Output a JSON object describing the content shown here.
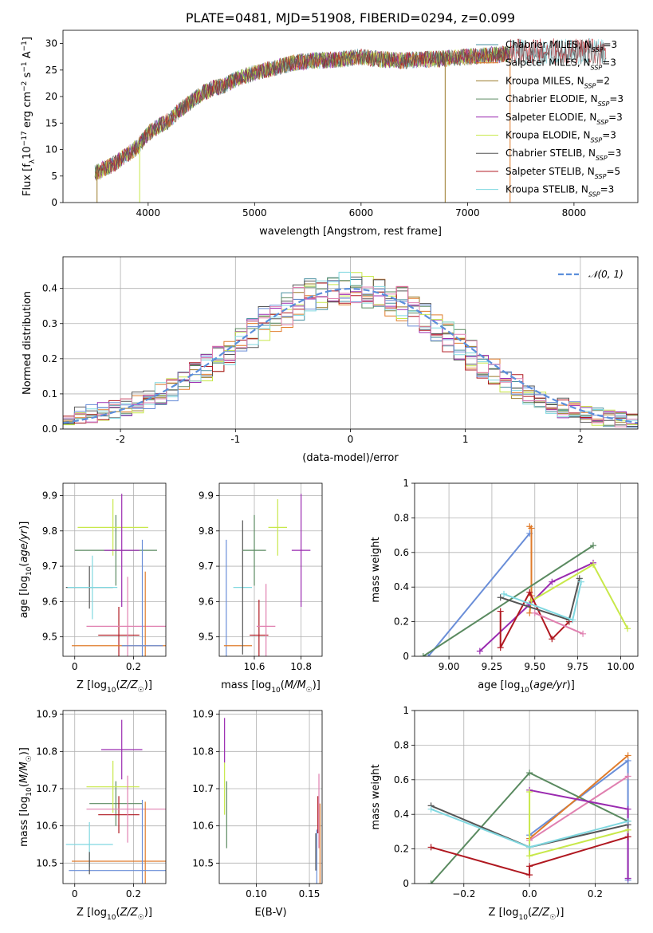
{
  "colors": {
    "Chabrier MILES": "#4a90a0",
    "Salpeter MILES": "#e07b2a",
    "Kroupa MILES": "#9a7a2a",
    "Chabrier ELODIE": "#5a8a60",
    "Salpeter ELODIE": "#9a2ab0",
    "Kroupa ELODIE": "#c8e84a",
    "Chabrier STELIB": "#555555",
    "Salpeter STELIB": "#b01820",
    "Kroupa STELIB": "#80d8e0",
    "extra_blue": "#6a8ed8",
    "extra_pink": "#e080b0",
    "normal_curve": "#5b8fdb",
    "grid": "#b0b0b0"
  },
  "chart_data": [
    {
      "type": "line",
      "title": "PLATE=0481, MJD=51908, FIBERID=0294, z=0.099",
      "xlabel": "wavelength [Angstrom, rest frame]",
      "ylabel": "Flux [fλ10⁻¹⁷ erg cm⁻² s⁻¹ A⁻¹]",
      "xlim": [
        3200,
        8600
      ],
      "ylim": [
        0,
        32.5
      ],
      "xticks": [
        4000,
        5000,
        6000,
        7000,
        8000
      ],
      "yticks": [
        0,
        5,
        10,
        15,
        20,
        25,
        30
      ],
      "grid": false,
      "legend_position": "right",
      "legend": [
        {
          "pre": "Chabrier MILES, N",
          "sub": "SSP",
          "post": "=3",
          "color_key": "Chabrier MILES"
        },
        {
          "pre": "Salpeter MILES, N",
          "sub": "SSP",
          "post": "=3",
          "color_key": "Salpeter MILES"
        },
        {
          "pre": "Kroupa MILES, N",
          "sub": "SSP",
          "post": "=2",
          "color_key": "Kroupa MILES"
        },
        {
          "pre": "Chabrier ELODIE, N",
          "sub": "SSP",
          "post": "=3",
          "color_key": "Chabrier ELODIE"
        },
        {
          "pre": "Salpeter ELODIE, N",
          "sub": "SSP",
          "post": "=3",
          "color_key": "Salpeter ELODIE"
        },
        {
          "pre": "Kroupa ELODIE, N",
          "sub": "SSP",
          "post": "=3",
          "color_key": "Kroupa ELODIE"
        },
        {
          "pre": "Chabrier STELIB, N",
          "sub": "SSP",
          "post": "=3",
          "color_key": "Chabrier STELIB"
        },
        {
          "pre": "Salpeter STELIB, N",
          "sub": "SSP",
          "post": "=5",
          "color_key": "Salpeter STELIB"
        },
        {
          "pre": "Kroupa STELIB, N",
          "sub": "SSP",
          "post": "=3",
          "color_key": "Kroupa STELIB"
        }
      ],
      "spectrum_envelope": {
        "x": [
          3500,
          3600,
          3700,
          3800,
          3900,
          4000,
          4100,
          4200,
          4300,
          4400,
          4500,
          4600,
          4700,
          4800,
          4900,
          5000,
          5200,
          5400,
          5600,
          5800,
          6000,
          6200,
          6400,
          6600,
          6800,
          7000,
          7200,
          7400
        ],
        "y": [
          5.5,
          6.5,
          7.5,
          9.0,
          10.5,
          13.0,
          14.5,
          15.5,
          17.5,
          19.0,
          20.5,
          21.5,
          22.0,
          23.0,
          23.8,
          24.5,
          25.5,
          26.5,
          26.8,
          27.0,
          27.5,
          27.0,
          26.8,
          27.0,
          27.2,
          27.5,
          27.8,
          28.0
        ]
      },
      "spike_drops_x": [
        3520,
        3920,
        6790,
        7400
      ],
      "red_tail": {
        "x": [
          7400,
          8300
        ],
        "y_mean": 28.5
      }
    },
    {
      "type": "histogram",
      "xlabel": "(data-model)/error",
      "ylabel": "Normed distribution",
      "xlim": [
        -2.5,
        2.5
      ],
      "ylim": [
        0,
        0.49
      ],
      "xticks": [
        -2,
        -1,
        0,
        1,
        2
      ],
      "yticks": [
        0.0,
        0.1,
        0.2,
        0.3,
        0.4
      ],
      "grid": true,
      "legend_position": "top-right",
      "curve_label": "𝒩(0, 1)",
      "bin_edges": [
        -2.5,
        -2.4,
        -2.3,
        -2.2,
        -2.1,
        -2.0,
        -1.9,
        -1.8,
        -1.7,
        -1.6,
        -1.5,
        -1.4,
        -1.3,
        -1.2,
        -1.1,
        -1.0,
        -0.9,
        -0.8,
        -0.7,
        -0.6,
        -0.5,
        -0.4,
        -0.3,
        -0.2,
        -0.1,
        0.0,
        0.1,
        0.2,
        0.3,
        0.4,
        0.5,
        0.6,
        0.7,
        0.8,
        0.9,
        1.0,
        1.1,
        1.2,
        1.3,
        1.4,
        1.5,
        1.6,
        1.7,
        1.8,
        1.9,
        2.0,
        2.1,
        2.2,
        2.3,
        2.4,
        2.5
      ],
      "series_base": [
        0.035,
        0.04,
        0.045,
        0.05,
        0.055,
        0.06,
        0.075,
        0.09,
        0.1,
        0.115,
        0.135,
        0.155,
        0.175,
        0.195,
        0.22,
        0.25,
        0.275,
        0.3,
        0.32,
        0.34,
        0.36,
        0.375,
        0.385,
        0.39,
        0.395,
        0.4,
        0.395,
        0.385,
        0.375,
        0.36,
        0.34,
        0.32,
        0.295,
        0.265,
        0.24,
        0.21,
        0.185,
        0.16,
        0.14,
        0.12,
        0.1,
        0.085,
        0.07,
        0.06,
        0.05,
        0.04,
        0.035,
        0.03,
        0.025,
        0.02
      ]
    },
    {
      "type": "scatter",
      "subtype": "errorbar",
      "xlabel": "Z [log10(Z/Z☉)]",
      "ylabel": "age  [log10(age/yr)]",
      "xlim": [
        -0.04,
        0.31
      ],
      "ylim": [
        9.445,
        9.935
      ],
      "xticks": [
        0.0,
        0.2
      ],
      "yticks": [
        9.5,
        9.6,
        9.7,
        9.8,
        9.9
      ],
      "grid": true,
      "points": [
        {
          "x": 0.05,
          "y": 9.64,
          "xerr": 0.08,
          "yerr": 0.06,
          "c": "Chabrier STELIB"
        },
        {
          "x": 0.06,
          "y": 9.64,
          "xerr": 0.085,
          "yerr": 0.09,
          "c": "Kroupa STELIB"
        },
        {
          "x": 0.14,
          "y": 9.745,
          "xerr": 0.14,
          "yerr": 0.1,
          "c": "Chabrier ELODIE"
        },
        {
          "x": 0.13,
          "y": 9.81,
          "xerr": 0.12,
          "yerr": 0.08,
          "c": "Kroupa ELODIE"
        },
        {
          "x": 0.16,
          "y": 9.745,
          "xerr": 0.06,
          "yerr": 0.16,
          "c": "Salpeter ELODIE"
        },
        {
          "x": 0.15,
          "y": 9.505,
          "xerr": 0.07,
          "yerr": 0.08,
          "c": "Salpeter STELIB"
        },
        {
          "x": 0.18,
          "y": 9.53,
          "xerr": 0.14,
          "yerr": 0.14,
          "c": "extra_pink"
        },
        {
          "x": 0.24,
          "y": 9.475,
          "xerr": 0.25,
          "yerr": 0.21,
          "c": "Salpeter MILES"
        },
        {
          "x": 0.23,
          "y": 9.475,
          "xerr": 0.07,
          "yerr": 0.3,
          "c": "extra_blue"
        }
      ]
    },
    {
      "type": "scatter",
      "subtype": "errorbar",
      "xlabel": "mass [log10(M/M☉)]",
      "ylabel": "",
      "xlim": [
        10.45,
        10.89
      ],
      "ylim": [
        9.445,
        9.935
      ],
      "xticks": [
        10.6,
        10.8
      ],
      "yticks": [
        9.5,
        9.6,
        9.7,
        9.8,
        9.9
      ],
      "grid": true,
      "points": [
        {
          "x": 10.48,
          "y": 9.475,
          "xerr": 0.0,
          "yerr": 0.3,
          "c": "extra_blue"
        },
        {
          "x": 10.53,
          "y": 9.475,
          "xerr": 0.06,
          "yerr": 0.0,
          "c": "Salpeter MILES"
        },
        {
          "x": 10.55,
          "y": 9.64,
          "xerr": 0.04,
          "yerr": 0.0,
          "c": "Kroupa STELIB"
        },
        {
          "x": 10.55,
          "y": 9.64,
          "xerr": 0.0,
          "yerr": 0.19,
          "c": "Chabrier STELIB"
        },
        {
          "x": 10.6,
          "y": 9.745,
          "xerr": 0.05,
          "yerr": 0.1,
          "c": "Chabrier ELODIE"
        },
        {
          "x": 10.62,
          "y": 9.505,
          "xerr": 0.04,
          "yerr": 0.1,
          "c": "Salpeter STELIB"
        },
        {
          "x": 10.65,
          "y": 9.53,
          "xerr": 0.04,
          "yerr": 0.12,
          "c": "extra_pink"
        },
        {
          "x": 10.7,
          "y": 9.81,
          "xerr": 0.04,
          "yerr": 0.08,
          "c": "Kroupa ELODIE"
        },
        {
          "x": 10.8,
          "y": 9.745,
          "xerr": 0.04,
          "yerr": 0.16,
          "c": "Salpeter ELODIE"
        }
      ]
    },
    {
      "type": "line",
      "xlabel": "age  [log10(age/yr)]",
      "ylabel": "mass weight",
      "xlim": [
        8.8,
        10.1
      ],
      "ylim": [
        0,
        1
      ],
      "xticks": [
        9.0,
        9.25,
        9.5,
        9.75,
        10.0
      ],
      "xticklabels": [
        "9.00",
        "9.25",
        "9.50",
        "9.75",
        "10.00"
      ],
      "yticks": [
        0.0,
        0.2,
        0.4,
        0.6,
        0.8,
        1.0
      ],
      "grid": true,
      "series": [
        {
          "c": "extra_blue",
          "x": [
            8.88,
            9.47
          ],
          "y": [
            0.0,
            0.71
          ]
        },
        {
          "c": "Salpeter MILES",
          "x": [
            9.47,
            9.48,
            9.48,
            9.47
          ],
          "y": [
            0.75,
            0.74,
            0.35,
            0.25
          ]
        },
        {
          "c": "Chabrier ELODIE",
          "x": [
            8.85,
            9.84
          ],
          "y": [
            0.0,
            0.64
          ]
        },
        {
          "c": "Salpeter ELODIE",
          "x": [
            9.18,
            9.47,
            9.6,
            9.84
          ],
          "y": [
            0.03,
            0.3,
            0.43,
            0.54
          ]
        },
        {
          "c": "Kroupa ELODIE",
          "x": [
            9.48,
            9.84,
            10.04
          ],
          "y": [
            0.32,
            0.53,
            0.16
          ]
        },
        {
          "c": "Salpeter STELIB",
          "x": [
            9.3,
            9.3,
            9.47,
            9.6,
            9.7
          ],
          "y": [
            0.26,
            0.05,
            0.37,
            0.1,
            0.2
          ]
        },
        {
          "c": "Chabrier STELIB",
          "x": [
            9.3,
            9.7,
            9.76
          ],
          "y": [
            0.34,
            0.21,
            0.45
          ]
        },
        {
          "c": "Kroupa STELIB",
          "x": [
            9.32,
            9.72,
            9.77
          ],
          "y": [
            0.36,
            0.21,
            0.43
          ]
        },
        {
          "c": "extra_pink",
          "x": [
            9.5,
            9.78
          ],
          "y": [
            0.25,
            0.13
          ]
        }
      ]
    },
    {
      "type": "scatter",
      "subtype": "errorbar",
      "xlabel": "Z [log10(Z/Z☉)]",
      "ylabel": "mass [log10(M/M☉)]",
      "xlim": [
        -0.04,
        0.31
      ],
      "ylim": [
        10.445,
        10.91
      ],
      "xticks": [
        0.0,
        0.2
      ],
      "yticks": [
        10.5,
        10.6,
        10.7,
        10.8,
        10.9
      ],
      "grid": true,
      "points": [
        {
          "x": 0.05,
          "y": 10.55,
          "xerr": 0.08,
          "yerr": 0.06,
          "c": "Kroupa STELIB"
        },
        {
          "x": 0.14,
          "y": 10.66,
          "xerr": 0.09,
          "yerr": 0.06,
          "c": "Chabrier ELODIE"
        },
        {
          "x": 0.13,
          "y": 10.705,
          "xerr": 0.09,
          "yerr": 0.07,
          "c": "Kroupa ELODIE"
        },
        {
          "x": 0.16,
          "y": 10.805,
          "xerr": 0.07,
          "yerr": 0.08,
          "c": "Salpeter ELODIE"
        },
        {
          "x": 0.15,
          "y": 10.63,
          "xerr": 0.07,
          "yerr": 0.05,
          "c": "Salpeter STELIB"
        },
        {
          "x": 0.18,
          "y": 10.645,
          "xerr": 0.14,
          "yerr": 0.09,
          "c": "extra_pink"
        },
        {
          "x": 0.24,
          "y": 10.505,
          "xerr": 0.25,
          "yerr": 0.16,
          "c": "Salpeter MILES"
        },
        {
          "x": 0.23,
          "y": 10.48,
          "xerr": 0.25,
          "yerr": 0.19,
          "c": "extra_blue"
        },
        {
          "x": 0.05,
          "y": 10.5,
          "xerr": 0.0,
          "yerr": 0.03,
          "c": "Chabrier STELIB"
        }
      ]
    },
    {
      "type": "scatter",
      "subtype": "errorbar",
      "xlabel": "E(B-V)",
      "ylabel": "",
      "xlim": [
        0.065,
        0.162
      ],
      "ylim": [
        10.445,
        10.91
      ],
      "xticks": [
        0.1,
        0.15
      ],
      "xticklabels": [
        "0.10",
        "0.15"
      ],
      "yticks": [
        10.5,
        10.6,
        10.7,
        10.8,
        10.9
      ],
      "grid": true,
      "points": [
        {
          "x": 0.07,
          "y": 10.83,
          "xerr": 0.0,
          "yerr": 0.06,
          "c": "Salpeter ELODIE"
        },
        {
          "x": 0.07,
          "y": 10.7,
          "xerr": 0.0,
          "yerr": 0.07,
          "c": "Kroupa ELODIE"
        },
        {
          "x": 0.072,
          "y": 10.63,
          "xerr": 0.0,
          "yerr": 0.09,
          "c": "Chabrier ELODIE"
        },
        {
          "x": 0.158,
          "y": 10.63,
          "xerr": 0.0,
          "yerr": 0.05,
          "c": "Salpeter STELIB"
        },
        {
          "x": 0.159,
          "y": 10.64,
          "xerr": 0.0,
          "yerr": 0.1,
          "c": "extra_pink"
        },
        {
          "x": 0.16,
          "y": 10.5,
          "xerr": 0.0,
          "yerr": 0.16,
          "c": "Salpeter MILES"
        },
        {
          "x": 0.157,
          "y": 10.49,
          "xerr": 0.0,
          "yerr": 0.1,
          "c": "extra_blue"
        },
        {
          "x": 0.156,
          "y": 10.53,
          "xerr": 0.0,
          "yerr": 0.05,
          "c": "Chabrier STELIB"
        }
      ]
    },
    {
      "type": "line",
      "xlabel": "Z [log10(Z/Z☉)]",
      "ylabel": "mass weight",
      "xlim": [
        -0.35,
        0.33
      ],
      "ylim": [
        0,
        1
      ],
      "xticks": [
        -0.2,
        0.0,
        0.2
      ],
      "xticklabels": [
        "−0.2",
        "0.0",
        "0.2"
      ],
      "yticks": [
        0.0,
        0.2,
        0.4,
        0.6,
        0.8,
        1.0
      ],
      "grid": true,
      "series": [
        {
          "c": "extra_blue",
          "x": [
            0.0,
            0.3,
            0.3
          ],
          "y": [
            0.28,
            0.71,
            0.02
          ]
        },
        {
          "c": "Salpeter MILES",
          "x": [
            0.0,
            0.3
          ],
          "y": [
            0.26,
            0.74
          ]
        },
        {
          "c": "extra_pink",
          "x": [
            0.0,
            0.3
          ],
          "y": [
            0.25,
            0.62
          ]
        },
        {
          "c": "Chabrier ELODIE",
          "x": [
            -0.3,
            0.0,
            0.3
          ],
          "y": [
            0.0,
            0.64,
            0.36
          ]
        },
        {
          "c": "Salpeter ELODIE",
          "x": [
            0.0,
            0.3,
            0.3
          ],
          "y": [
            0.54,
            0.43,
            0.03
          ]
        },
        {
          "c": "Kroupa ELODIE",
          "x": [
            0.0,
            0.0,
            0.3
          ],
          "y": [
            0.53,
            0.16,
            0.31
          ]
        },
        {
          "c": "Salpeter STELIB",
          "x": [
            -0.3,
            0.0,
            0.0,
            0.3
          ],
          "y": [
            0.21,
            0.05,
            0.1,
            0.27
          ]
        },
        {
          "c": "Chabrier STELIB",
          "x": [
            -0.3,
            0.0,
            0.3
          ],
          "y": [
            0.45,
            0.21,
            0.34
          ]
        },
        {
          "c": "Kroupa STELIB",
          "x": [
            -0.3,
            0.0,
            0.3
          ],
          "y": [
            0.43,
            0.21,
            0.36
          ]
        }
      ]
    }
  ]
}
